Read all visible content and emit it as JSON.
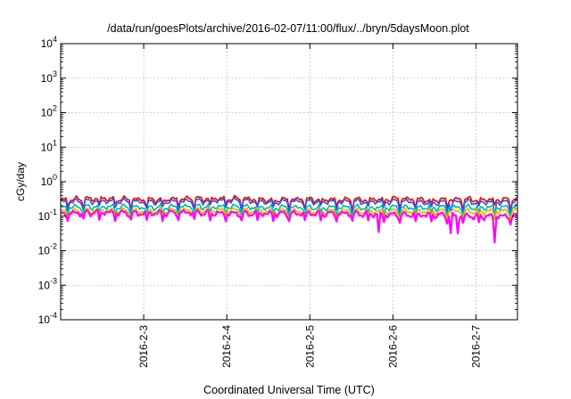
{
  "chart_data": {
    "type": "line",
    "title": "/data/run/goesPlots/archive/2016-02-07/11:00/flux/../bryn/5daysMoon.plot",
    "xlabel": "Coordinated Universal Time (UTC)",
    "ylabel": "cGy/day",
    "yscale": "log",
    "ylim": [
      0.0001,
      10000
    ],
    "xlim": [
      "2016-02-02 00:00",
      "2016-02-07 12:00"
    ],
    "grid": true,
    "legend": "none",
    "y_ticks": [
      {
        "value": 0.0001,
        "base": "10",
        "exp": "-4"
      },
      {
        "value": 0.001,
        "base": "10",
        "exp": "-3"
      },
      {
        "value": 0.01,
        "base": "10",
        "exp": "-2"
      },
      {
        "value": 0.1,
        "base": "10",
        "exp": "-1"
      },
      {
        "value": 1,
        "base": "10",
        "exp": "0"
      },
      {
        "value": 10,
        "base": "10",
        "exp": "1"
      },
      {
        "value": 100,
        "base": "10",
        "exp": "2"
      },
      {
        "value": 1000,
        "base": "10",
        "exp": "3"
      },
      {
        "value": 10000,
        "base": "10",
        "exp": "4"
      }
    ],
    "x_ticks": [
      {
        "value": "2016-02-03 00:00",
        "label": "2016-2-3"
      },
      {
        "value": "2016-02-04 00:00",
        "label": "2016-2-4"
      },
      {
        "value": "2016-02-05 00:00",
        "label": "2016-2-5"
      },
      {
        "value": "2016-02-06 00:00",
        "label": "2016-2-6"
      },
      {
        "value": "2016-02-07 00:00",
        "label": "2016-2-7"
      }
    ],
    "x": [
      "2016-02-02 00:00",
      "2016-02-02 12:00",
      "2016-02-03 00:00",
      "2016-02-03 12:00",
      "2016-02-04 00:00",
      "2016-02-04 12:00",
      "2016-02-05 00:00",
      "2016-02-05 12:00",
      "2016-02-06 00:00",
      "2016-02-06 12:00",
      "2016-02-07 00:00",
      "2016-02-07 12:00"
    ],
    "series": [
      {
        "color": "#ff0000",
        "values": [
          0.3,
          0.33,
          0.3,
          0.32,
          0.33,
          0.3,
          0.31,
          0.3,
          0.32,
          0.3,
          0.31,
          0.3
        ]
      },
      {
        "color": "#2255ff",
        "values": [
          0.26,
          0.28,
          0.26,
          0.27,
          0.29,
          0.26,
          0.27,
          0.26,
          0.27,
          0.25,
          0.26,
          0.25
        ]
      },
      {
        "color": "#00bb99",
        "values": [
          0.18,
          0.19,
          0.18,
          0.19,
          0.19,
          0.18,
          0.18,
          0.18,
          0.18,
          0.18,
          0.18,
          0.18
        ]
      },
      {
        "color": "#ffaa00",
        "values": [
          0.14,
          0.15,
          0.14,
          0.15,
          0.15,
          0.14,
          0.14,
          0.14,
          0.14,
          0.14,
          0.14,
          0.14
        ]
      },
      {
        "color": "#ff00ff",
        "values": [
          0.12,
          0.13,
          0.12,
          0.13,
          0.12,
          0.12,
          0.12,
          0.12,
          0.11,
          0.11,
          0.1,
          0.1
        ]
      }
    ]
  }
}
